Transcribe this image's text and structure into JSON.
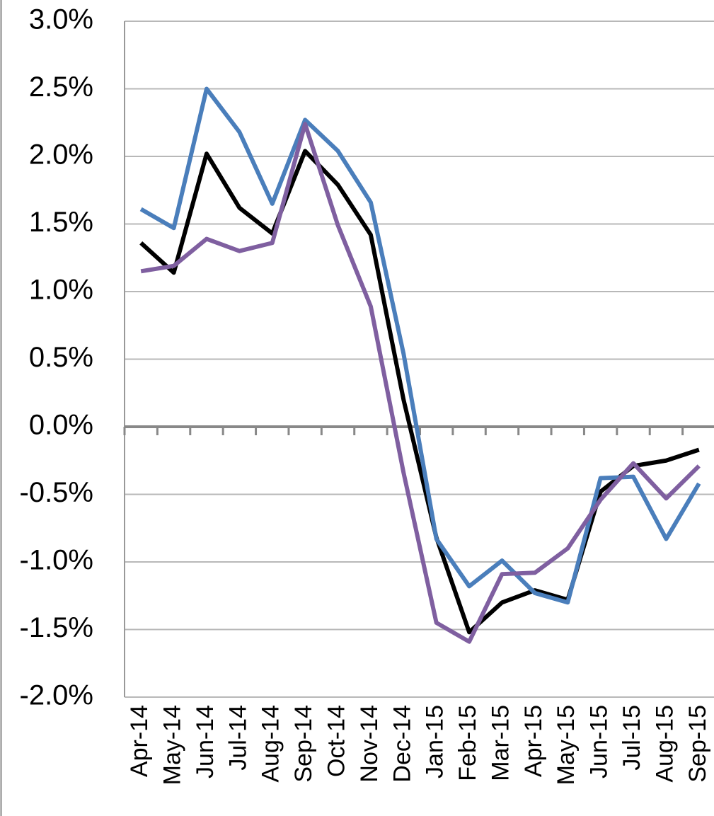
{
  "chart_data": {
    "type": "line",
    "categories": [
      "Apr-14",
      "May-14",
      "Jun-14",
      "Jul-14",
      "Aug-14",
      "Sep-14",
      "Oct-14",
      "Nov-14",
      "Dec-14",
      "Jan-15",
      "Feb-15",
      "Mar-15",
      "Apr-15",
      "May-15",
      "Jun-15",
      "Jul-15",
      "Aug-15",
      "Sep-15"
    ],
    "series": [
      {
        "color": "#000000",
        "values": [
          1.36,
          1.14,
          2.02,
          1.62,
          1.43,
          2.04,
          1.79,
          1.42,
          0.2,
          -0.82,
          -1.52,
          -1.3,
          -1.21,
          -1.28,
          -0.48,
          -0.29,
          -0.25,
          -0.17
        ]
      },
      {
        "color": "#4a7ebb",
        "values": [
          1.61,
          1.47,
          2.5,
          2.18,
          1.65,
          2.27,
          2.04,
          1.66,
          0.54,
          -0.83,
          -1.18,
          -0.99,
          -1.23,
          -1.3,
          -0.38,
          -0.37,
          -0.83,
          -0.42
        ]
      },
      {
        "color": "#7f5fa0",
        "values": [
          1.15,
          1.19,
          1.39,
          1.3,
          1.36,
          2.24,
          1.49,
          0.89,
          -0.34,
          -1.45,
          -1.59,
          -1.09,
          -1.08,
          -0.9,
          -0.54,
          -0.27,
          -0.53,
          -0.29
        ]
      }
    ],
    "ylim": [
      -2.0,
      3.0
    ],
    "yticks": [
      {
        "value": -2.0,
        "label": "-2.0%"
      },
      {
        "value": -1.5,
        "label": "-1.5%"
      },
      {
        "value": -1.0,
        "label": "-1.0%"
      },
      {
        "value": -0.5,
        "label": "-0.5%"
      },
      {
        "value": 0.0,
        "label": "0.0%"
      },
      {
        "value": 0.5,
        "label": "0.5%"
      },
      {
        "value": 1.0,
        "label": "1.0%"
      },
      {
        "value": 1.5,
        "label": "1.5%"
      },
      {
        "value": 2.0,
        "label": "2.0%"
      },
      {
        "value": 2.5,
        "label": "2.5%"
      },
      {
        "value": 3.0,
        "label": "3.0%"
      }
    ],
    "grid": true
  }
}
